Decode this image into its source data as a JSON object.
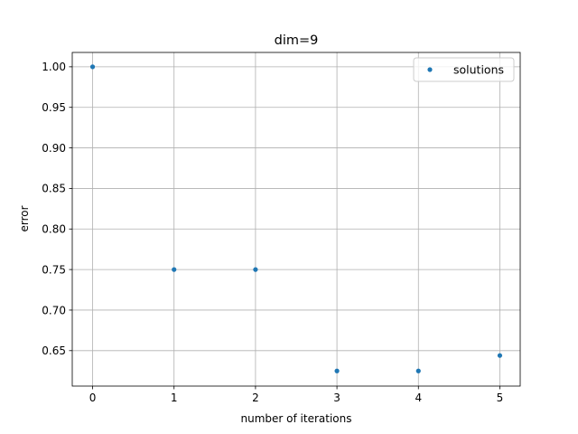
{
  "chart_data": {
    "type": "scatter",
    "title": "dim=9",
    "xlabel": "number of iterations",
    "ylabel": "error",
    "x": [
      0,
      1,
      2,
      3,
      4,
      5
    ],
    "series": [
      {
        "name": "solutions",
        "values": [
          1.0,
          0.75,
          0.75,
          0.625,
          0.625,
          0.644
        ],
        "color": "#1f77b4"
      }
    ],
    "xlim": [
      -0.25,
      5.25
    ],
    "ylim": [
      0.6063,
      1.0177
    ],
    "xticks": [
      0,
      1,
      2,
      3,
      4,
      5
    ],
    "yticks": [
      0.65,
      0.7,
      0.75,
      0.8,
      0.85,
      0.9,
      0.95,
      1.0
    ],
    "ytick_labels": [
      "0.65",
      "0.70",
      "0.75",
      "0.80",
      "0.85",
      "0.90",
      "0.95",
      "1.00"
    ],
    "grid": true,
    "legend_position": "top-right"
  }
}
